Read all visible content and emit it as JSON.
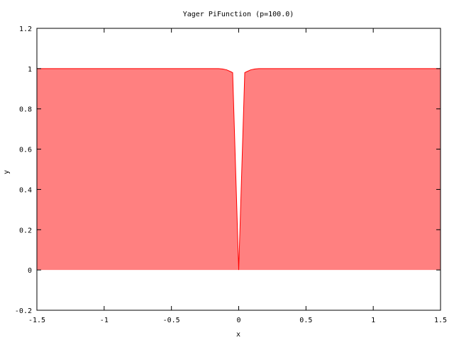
{
  "chart_data": {
    "type": "area",
    "title": "Yager PiFunction (p=100.0)",
    "xlabel": "x",
    "ylabel": "y",
    "xlim": [
      -1.5,
      1.5
    ],
    "ylim": [
      -0.2,
      1.2
    ],
    "xticks": [
      -1.5,
      -1,
      -0.5,
      0,
      0.5,
      1,
      1.5
    ],
    "xtick_labels": [
      "-1.5",
      "-1",
      "-0.5",
      "0",
      "0.5",
      "1",
      "1.5"
    ],
    "yticks": [
      -0.2,
      0,
      0.2,
      0.4,
      0.6,
      0.8,
      1,
      1.2
    ],
    "ytick_labels": [
      "-0.2",
      "0",
      "0.2",
      "0.4",
      "0.6",
      "0.8",
      "1",
      "1.2"
    ],
    "grid": false,
    "series": [
      {
        "color": "#ff0000",
        "fill_color": "#ff8080",
        "x": [
          -1.5,
          -0.15,
          -0.12,
          -0.09,
          -0.06,
          -0.045,
          0,
          0.045,
          0.06,
          0.09,
          0.12,
          0.15,
          1.5
        ],
        "y": [
          1.0,
          1.0,
          0.998,
          0.994,
          0.985,
          0.98,
          0.0,
          0.98,
          0.985,
          0.994,
          0.998,
          1.0,
          1.0
        ]
      }
    ]
  }
}
